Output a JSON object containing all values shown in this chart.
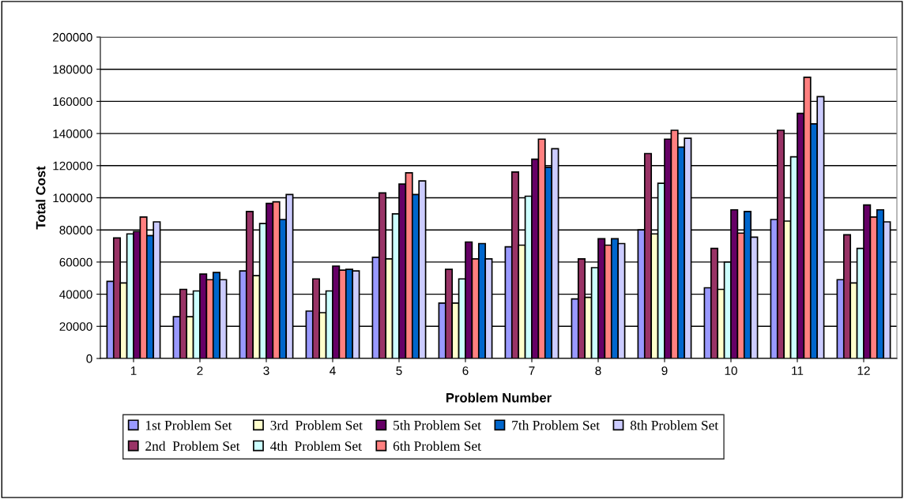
{
  "chart_data": {
    "type": "bar",
    "xlabel": "Problem Number",
    "ylabel": "Total Cost",
    "categories": [
      "1",
      "2",
      "3",
      "4",
      "5",
      "6",
      "7",
      "8",
      "9",
      "10",
      "11",
      "12"
    ],
    "series": [
      {
        "name": "1st Problem Set",
        "color": "#9999ff",
        "values": [
          48000,
          26000,
          54500,
          29500,
          63000,
          34500,
          69500,
          37000,
          80000,
          44000,
          86500,
          49000
        ]
      },
      {
        "name": "2nd  Problem Set",
        "color": "#993366",
        "values": [
          75000,
          43000,
          91500,
          49500,
          103000,
          55500,
          116000,
          62000,
          127500,
          68500,
          142000,
          77000
        ]
      },
      {
        "name": "3rd  Problem Set",
        "color": "#ffffcc",
        "values": [
          47000,
          26000,
          51500,
          28500,
          62000,
          34500,
          70500,
          38000,
          77500,
          43000,
          85500,
          47000
        ]
      },
      {
        "name": "4th  Problem Set",
        "color": "#ccffff",
        "values": [
          77500,
          42000,
          84000,
          42000,
          90000,
          49500,
          101000,
          56500,
          109000,
          60000,
          125500,
          68500
        ]
      },
      {
        "name": "5th Problem Set",
        "color": "#660066",
        "values": [
          79000,
          52500,
          96500,
          57500,
          108500,
          72500,
          124000,
          74500,
          136500,
          92500,
          152500,
          95500
        ]
      },
      {
        "name": "6th Problem Set",
        "color": "#ff8080",
        "values": [
          88000,
          49000,
          97500,
          55000,
          115500,
          62000,
          136500,
          70500,
          142000,
          78000,
          175000,
          88000
        ]
      },
      {
        "name": "7th Problem Set",
        "color": "#0066cc",
        "values": [
          76500,
          53500,
          86500,
          55500,
          102000,
          71500,
          119000,
          74500,
          131500,
          91500,
          146000,
          92500
        ]
      },
      {
        "name": "8th Problem Set",
        "color": "#ccccff",
        "values": [
          85000,
          49000,
          102000,
          54500,
          110500,
          62000,
          130500,
          71500,
          137000,
          75500,
          163000,
          85000
        ]
      }
    ],
    "ylim": [
      0,
      200000
    ],
    "yticks": [
      0,
      20000,
      40000,
      60000,
      80000,
      100000,
      120000,
      140000,
      160000,
      180000,
      200000
    ],
    "grid": "y",
    "legend": "bottom"
  }
}
